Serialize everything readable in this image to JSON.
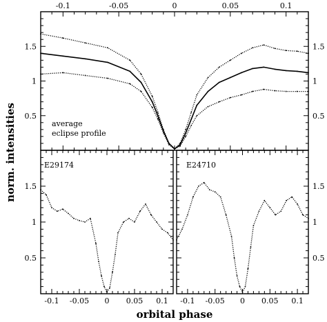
{
  "chart_data": [
    {
      "type": "scatter",
      "panel": "average",
      "annotation": [
        "average",
        "eclipse profile"
      ],
      "xlabel": "orbital phase",
      "ylabel": "norm. intensities",
      "xlim": [
        -0.12,
        0.12
      ],
      "ylim": [
        0,
        2.0
      ],
      "x_ticks_top": [
        "-0.1",
        "-0.05",
        "0",
        "0.05",
        "0.1"
      ],
      "y_ticks": [
        "0.5",
        "1",
        "1.5"
      ],
      "series": [
        {
          "style": "dotted",
          "color": "#000000",
          "x": [
            -0.12,
            -0.1,
            -0.08,
            -0.06,
            -0.04,
            -0.03,
            -0.02,
            -0.015,
            -0.01,
            -0.005,
            0,
            0.005,
            0.01,
            0.015,
            0.02,
            0.03,
            0.04,
            0.05,
            0.06,
            0.07,
            0.08,
            0.09,
            0.1,
            0.11,
            0.12
          ],
          "y": [
            1.68,
            1.62,
            1.55,
            1.48,
            1.3,
            1.1,
            0.78,
            0.55,
            0.3,
            0.1,
            0.02,
            0.1,
            0.3,
            0.55,
            0.8,
            1.05,
            1.2,
            1.3,
            1.4,
            1.48,
            1.52,
            1.47,
            1.44,
            1.43,
            1.4
          ]
        },
        {
          "style": "solid",
          "color": "#000000",
          "x": [
            -0.12,
            -0.1,
            -0.08,
            -0.06,
            -0.04,
            -0.03,
            -0.02,
            -0.015,
            -0.01,
            -0.005,
            0,
            0.005,
            0.01,
            0.015,
            0.02,
            0.03,
            0.04,
            0.05,
            0.06,
            0.07,
            0.08,
            0.09,
            0.1,
            0.11,
            0.12
          ],
          "y": [
            1.4,
            1.36,
            1.32,
            1.27,
            1.14,
            0.98,
            0.7,
            0.5,
            0.28,
            0.1,
            0.02,
            0.08,
            0.25,
            0.45,
            0.65,
            0.85,
            0.98,
            1.05,
            1.12,
            1.18,
            1.2,
            1.17,
            1.15,
            1.14,
            1.12
          ]
        },
        {
          "style": "dotted",
          "color": "#000000",
          "x": [
            -0.12,
            -0.1,
            -0.08,
            -0.06,
            -0.04,
            -0.03,
            -0.02,
            -0.015,
            -0.01,
            -0.005,
            0,
            0.005,
            0.01,
            0.015,
            0.02,
            0.03,
            0.04,
            0.05,
            0.06,
            0.07,
            0.08,
            0.09,
            0.1,
            0.11,
            0.12
          ],
          "y": [
            1.1,
            1.12,
            1.08,
            1.04,
            0.96,
            0.85,
            0.62,
            0.45,
            0.25,
            0.08,
            0.02,
            0.06,
            0.2,
            0.36,
            0.5,
            0.63,
            0.7,
            0.76,
            0.8,
            0.85,
            0.88,
            0.86,
            0.85,
            0.85,
            0.85
          ]
        }
      ]
    },
    {
      "type": "scatter",
      "panel": "E29174",
      "annotation": [
        "E29174"
      ],
      "xlabel": "orbital phase",
      "ylabel": "norm. intensities",
      "xlim": [
        -0.12,
        0.12
      ],
      "ylim": [
        0,
        2.0
      ],
      "x_ticks": [
        "-0.1",
        "-0.05",
        "0",
        "0.05",
        "0.1"
      ],
      "y_ticks": [
        "0.5",
        "1",
        "1.5"
      ],
      "series": [
        {
          "style": "dotted",
          "color": "#000000",
          "x": [
            -0.12,
            -0.11,
            -0.1,
            -0.09,
            -0.08,
            -0.07,
            -0.06,
            -0.05,
            -0.04,
            -0.03,
            -0.02,
            -0.015,
            -0.01,
            -0.005,
            0,
            0.005,
            0.01,
            0.015,
            0.02,
            0.03,
            0.04,
            0.05,
            0.06,
            0.07,
            0.08,
            0.09,
            0.1,
            0.11,
            0.12
          ],
          "y": [
            1.45,
            1.38,
            1.2,
            1.15,
            1.18,
            1.12,
            1.05,
            1.02,
            1.0,
            1.05,
            0.7,
            0.45,
            0.25,
            0.1,
            0.02,
            0.08,
            0.3,
            0.55,
            0.85,
            1.0,
            1.05,
            1.0,
            1.15,
            1.25,
            1.1,
            1.0,
            0.9,
            0.85,
            0.75
          ]
        }
      ]
    },
    {
      "type": "scatter",
      "panel": "E24710",
      "annotation": [
        "E24710"
      ],
      "xlabel": "orbital phase",
      "ylabel": "norm. intensities",
      "xlim": [
        -0.12,
        0.12
      ],
      "ylim": [
        0,
        2.0
      ],
      "x_ticks": [
        "-0.1",
        "-0.05",
        "0",
        "0.05",
        "0.1"
      ],
      "y_ticks": [
        "0.5",
        "1",
        "1.5"
      ],
      "series": [
        {
          "style": "dotted",
          "color": "#000000",
          "x": [
            -0.12,
            -0.11,
            -0.1,
            -0.09,
            -0.08,
            -0.07,
            -0.06,
            -0.05,
            -0.04,
            -0.03,
            -0.02,
            -0.015,
            -0.01,
            -0.005,
            0,
            0.005,
            0.01,
            0.015,
            0.02,
            0.03,
            0.04,
            0.05,
            0.06,
            0.07,
            0.08,
            0.09,
            0.1,
            0.11,
            0.12
          ],
          "y": [
            0.75,
            0.9,
            1.1,
            1.35,
            1.5,
            1.55,
            1.45,
            1.42,
            1.35,
            1.1,
            0.8,
            0.5,
            0.25,
            0.1,
            0.02,
            0.1,
            0.35,
            0.65,
            0.95,
            1.15,
            1.3,
            1.2,
            1.1,
            1.15,
            1.3,
            1.35,
            1.25,
            1.1,
            1.05
          ]
        }
      ]
    }
  ]
}
